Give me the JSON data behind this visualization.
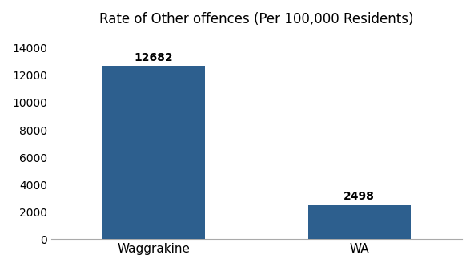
{
  "title": "Rate of Other offences (Per 100,000 Residents)",
  "categories": [
    "Waggrakine",
    "WA"
  ],
  "values": [
    12682,
    2498
  ],
  "bar_color": "#2d5f8e",
  "bar_width": 0.5,
  "ylim": [
    0,
    15000
  ],
  "yticks": [
    0,
    2000,
    4000,
    6000,
    8000,
    10000,
    12000,
    14000
  ],
  "title_fontsize": 12,
  "label_fontsize": 11,
  "tick_fontsize": 10,
  "annotation_fontsize": 10,
  "background_color": "#ffffff"
}
